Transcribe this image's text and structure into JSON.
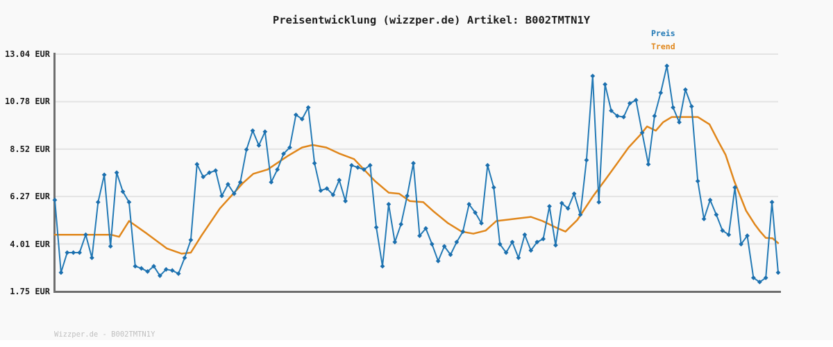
{
  "title": "Preisentwicklung (wizzper.de) Artikel: B002TMTN1Y",
  "legend": {
    "preis_label": "Preis",
    "trend_label": "Trend"
  },
  "footer": "Wizzper.de - B002TMTN1Y",
  "colors": {
    "preis_line": "#2279b5",
    "preis_marker": "#1b6fae",
    "trend_line": "#e0861a",
    "grid": "#e3e3e3",
    "spine": "#6e6e6e",
    "background": "#f9f9f9",
    "title_text": "#1c1c1c",
    "tick_text": "#1c1c1c",
    "footer_text": "#bfbfbf"
  },
  "y_axis": {
    "unit": "EUR",
    "ticks": [
      {
        "label": "13.04 EUR",
        "value": 13.04
      },
      {
        "label": "10.78 EUR",
        "value": 10.78
      },
      {
        "label": "8.52 EUR",
        "value": 8.52
      },
      {
        "label": "6.27 EUR",
        "value": 6.27
      },
      {
        "label": "4.01 EUR",
        "value": 4.01
      },
      {
        "label": "1.75 EUR",
        "value": 1.75
      }
    ]
  },
  "chart_data": {
    "type": "line",
    "title": "Preisentwicklung (wizzper.de) Artikel: B002TMTN1Y",
    "xlabel": "",
    "ylabel": "EUR",
    "ylim": [
      1.75,
      13.04
    ],
    "grid": "horizontal",
    "legend_position": "top-right",
    "x_tick_labels_visible": false,
    "y_tick_labels": [
      "13.04 EUR",
      "10.78 EUR",
      "8.52 EUR",
      "6.27 EUR",
      "4.01 EUR",
      "1.75 EUR"
    ],
    "series": [
      {
        "name": "Preis",
        "type": "line",
        "marker": "diamond",
        "color": "#2279b5",
        "values": [
          6.1,
          2.65,
          3.6,
          3.6,
          3.6,
          4.45,
          3.35,
          6.0,
          7.3,
          3.9,
          7.4,
          6.5,
          6.0,
          2.95,
          2.85,
          2.7,
          2.95,
          2.5,
          2.8,
          2.75,
          2.6,
          3.35,
          4.2,
          7.8,
          7.2,
          7.4,
          7.5,
          6.3,
          6.85,
          6.4,
          6.95,
          8.5,
          9.4,
          8.7,
          9.35,
          6.95,
          7.55,
          8.3,
          8.6,
          10.15,
          9.95,
          10.5,
          7.85,
          6.55,
          6.65,
          6.35,
          7.05,
          6.05,
          7.75,
          7.65,
          7.55,
          7.75,
          4.8,
          2.95,
          5.9,
          4.1,
          4.95,
          6.3,
          7.85,
          4.4,
          4.75,
          4.0,
          3.2,
          3.9,
          3.5,
          4.1,
          4.6,
          5.9,
          5.5,
          5.0,
          7.75,
          6.7,
          4.0,
          3.6,
          4.1,
          3.35,
          4.45,
          3.7,
          4.1,
          4.25,
          5.8,
          3.95,
          5.95,
          5.7,
          6.4,
          5.4,
          8.0,
          12.0,
          6.0,
          11.6,
          10.35,
          10.1,
          10.05,
          10.7,
          10.85,
          9.3,
          7.8,
          10.1,
          11.2,
          12.48,
          10.5,
          9.8,
          11.35,
          10.55,
          7.0,
          5.2,
          6.1,
          5.4,
          4.65,
          4.45,
          6.7,
          4.0,
          4.4,
          2.4,
          2.2,
          2.4,
          6.0,
          2.65
        ]
      },
      {
        "name": "Trend",
        "type": "line",
        "marker": "none",
        "color": "#e0861a",
        "waypoints": [
          {
            "i": 0.0,
            "v": 4.45
          },
          {
            "i": 9.1,
            "v": 4.45
          },
          {
            "i": 10.4,
            "v": 4.35
          },
          {
            "i": 12.0,
            "v": 5.1
          },
          {
            "i": 14.9,
            "v": 4.5
          },
          {
            "i": 18.1,
            "v": 3.8
          },
          {
            "i": 20.5,
            "v": 3.55
          },
          {
            "i": 22.0,
            "v": 3.6
          },
          {
            "i": 23.7,
            "v": 4.4
          },
          {
            "i": 26.7,
            "v": 5.7
          },
          {
            "i": 30.4,
            "v": 6.9
          },
          {
            "i": 32.1,
            "v": 7.35
          },
          {
            "i": 34.4,
            "v": 7.55
          },
          {
            "i": 37.7,
            "v": 8.2
          },
          {
            "i": 40.0,
            "v": 8.6
          },
          {
            "i": 41.7,
            "v": 8.72
          },
          {
            "i": 43.9,
            "v": 8.6
          },
          {
            "i": 46.1,
            "v": 8.3
          },
          {
            "i": 48.4,
            "v": 8.05
          },
          {
            "i": 51.8,
            "v": 7.0
          },
          {
            "i": 54.0,
            "v": 6.45
          },
          {
            "i": 55.7,
            "v": 6.4
          },
          {
            "i": 57.4,
            "v": 6.05
          },
          {
            "i": 59.6,
            "v": 6.0
          },
          {
            "i": 61.3,
            "v": 5.55
          },
          {
            "i": 63.6,
            "v": 5.0
          },
          {
            "i": 65.8,
            "v": 4.6
          },
          {
            "i": 67.7,
            "v": 4.5
          },
          {
            "i": 69.7,
            "v": 4.65
          },
          {
            "i": 71.4,
            "v": 5.1
          },
          {
            "i": 74.2,
            "v": 5.2
          },
          {
            "i": 77.0,
            "v": 5.3
          },
          {
            "i": 78.9,
            "v": 5.1
          },
          {
            "i": 81.0,
            "v": 4.8
          },
          {
            "i": 82.6,
            "v": 4.6
          },
          {
            "i": 84.5,
            "v": 5.15
          },
          {
            "i": 87.1,
            "v": 6.3
          },
          {
            "i": 89.0,
            "v": 7.05
          },
          {
            "i": 91.1,
            "v": 7.9
          },
          {
            "i": 92.8,
            "v": 8.6
          },
          {
            "i": 94.7,
            "v": 9.2
          },
          {
            "i": 95.8,
            "v": 9.6
          },
          {
            "i": 97.2,
            "v": 9.4
          },
          {
            "i": 98.4,
            "v": 9.8
          },
          {
            "i": 99.8,
            "v": 10.05
          },
          {
            "i": 104.0,
            "v": 10.05
          },
          {
            "i": 105.9,
            "v": 9.7
          },
          {
            "i": 107.3,
            "v": 8.9
          },
          {
            "i": 108.5,
            "v": 8.25
          },
          {
            "i": 109.9,
            "v": 7.0
          },
          {
            "i": 111.8,
            "v": 5.6
          },
          {
            "i": 113.2,
            "v": 4.95
          },
          {
            "i": 114.1,
            "v": 4.6
          },
          {
            "i": 115.0,
            "v": 4.3
          },
          {
            "i": 116.1,
            "v": 4.28
          },
          {
            "i": 117.0,
            "v": 4.05
          }
        ]
      }
    ]
  }
}
